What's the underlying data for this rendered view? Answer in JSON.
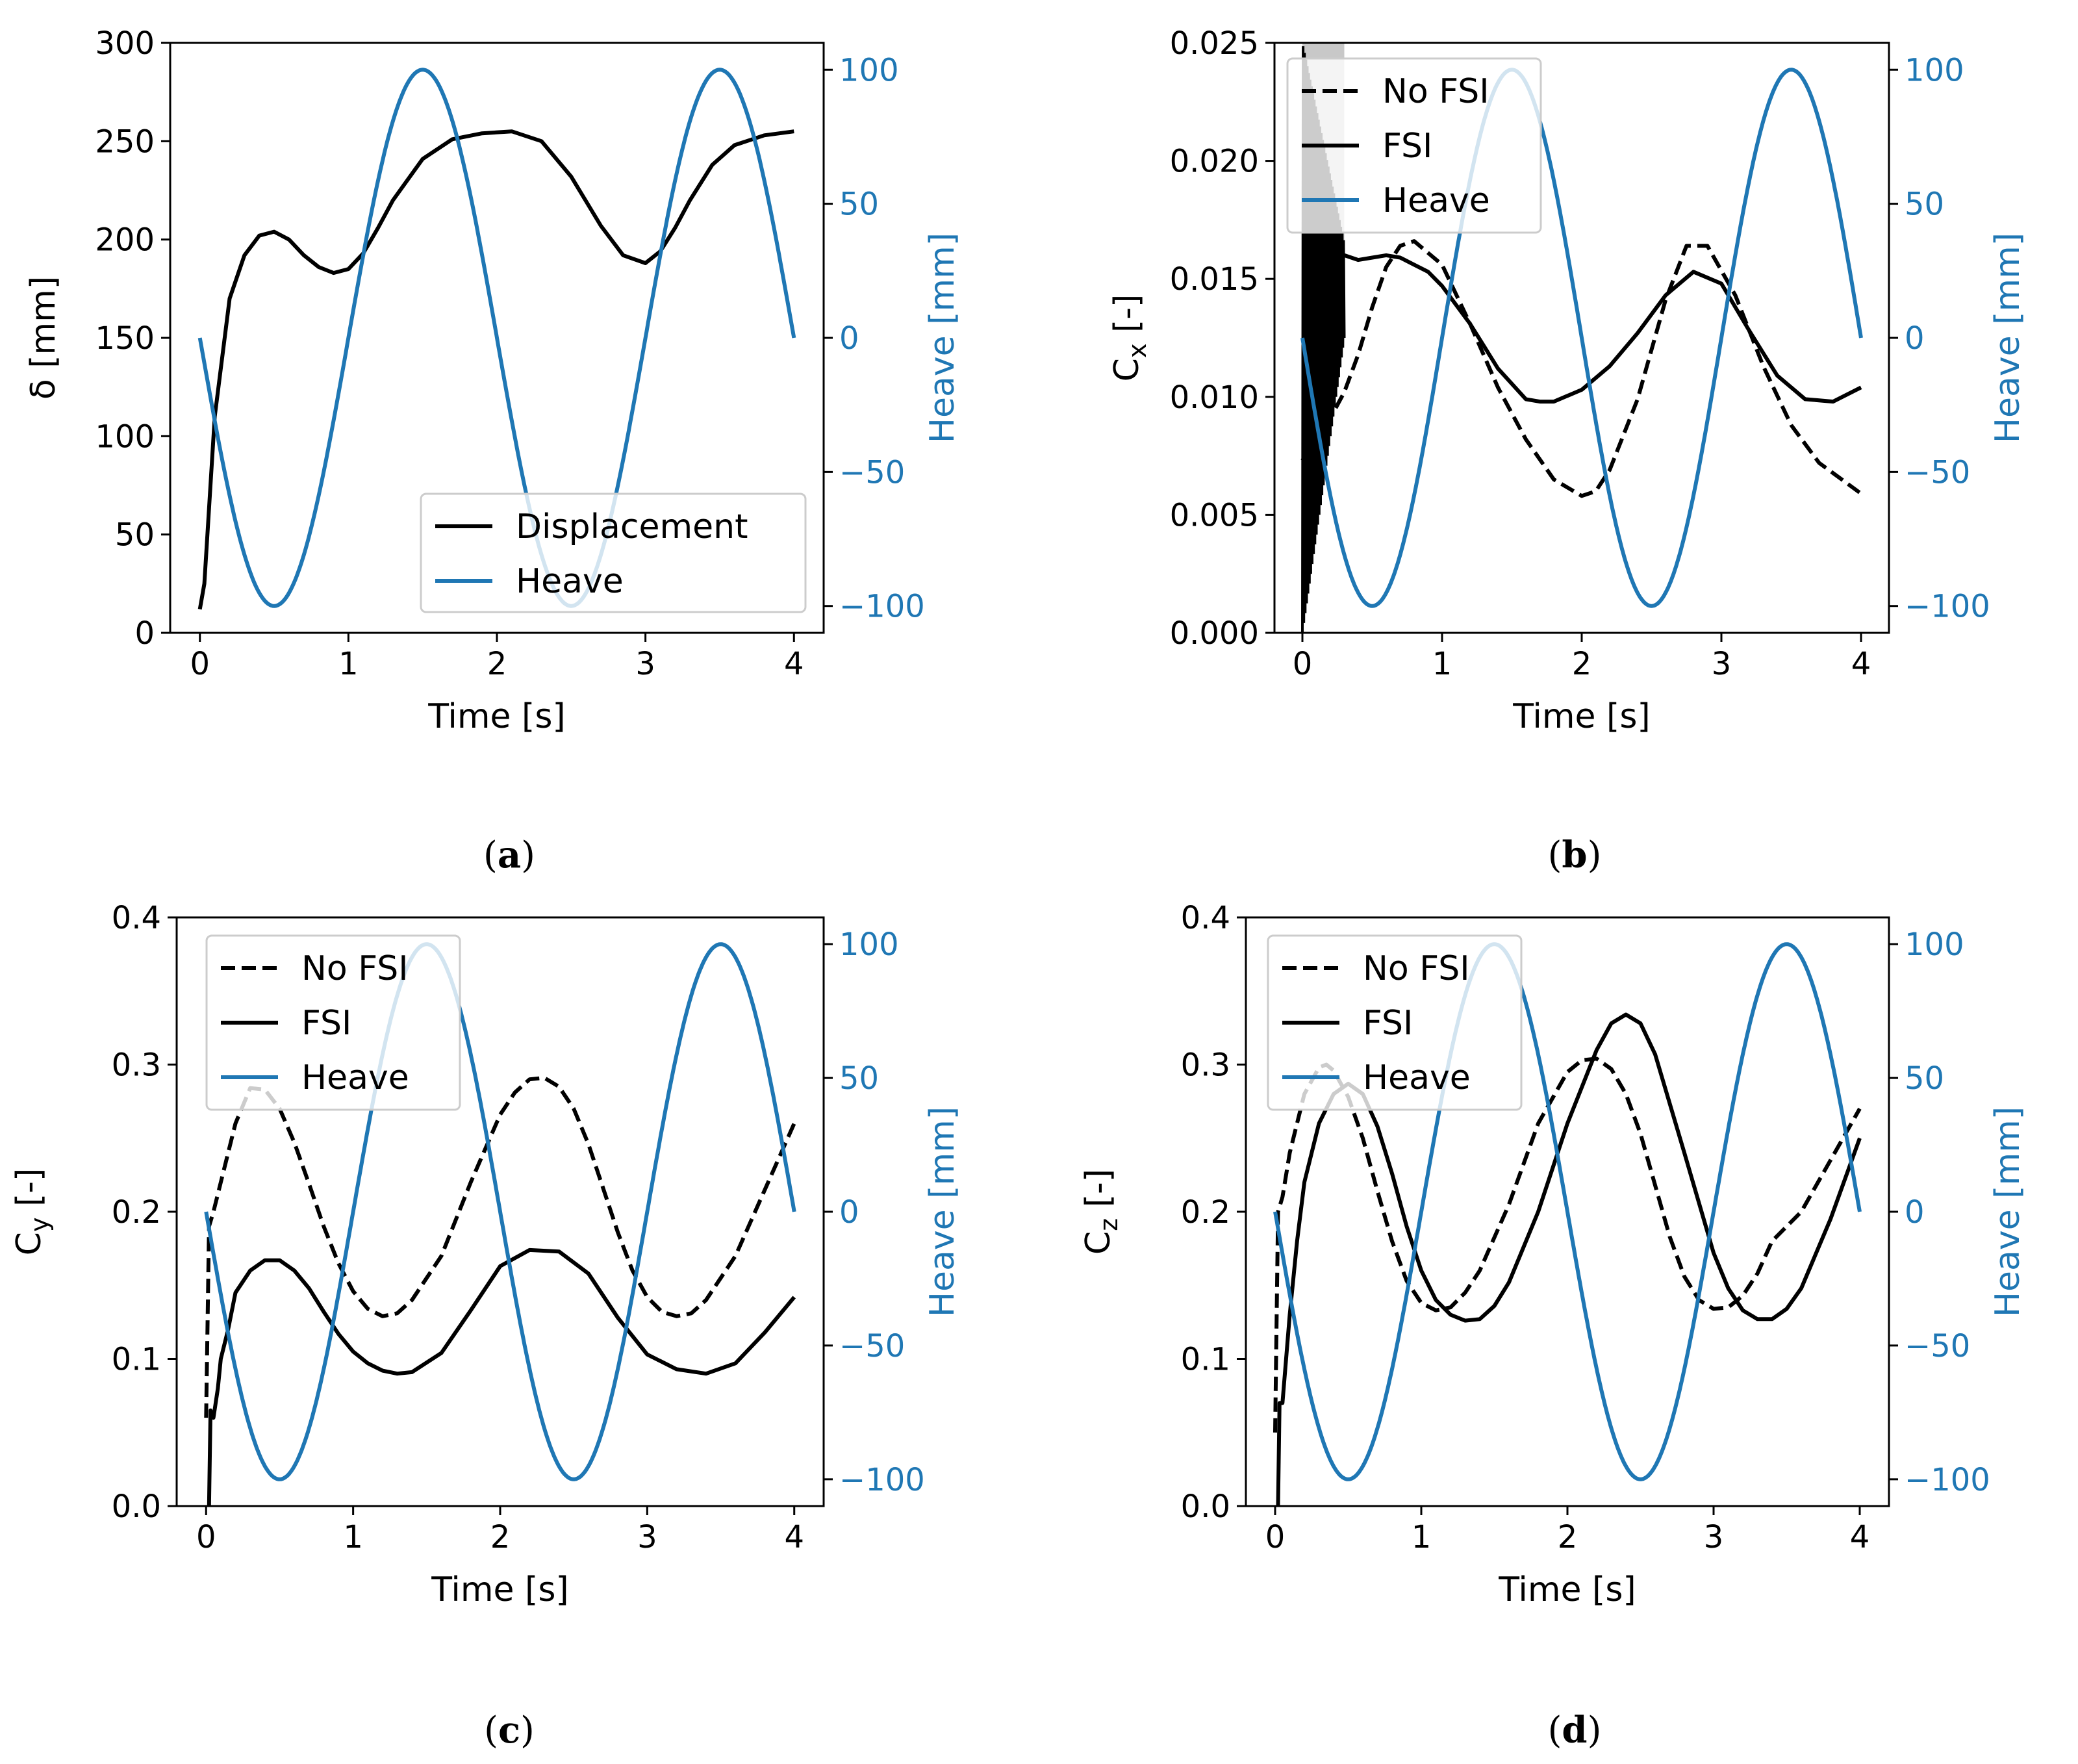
{
  "colors": {
    "heave": "#1f77b4",
    "black": "#000000",
    "fsi_initial_fill": "#c8c8c8"
  },
  "chart_data": [
    {
      "id": "a",
      "caption_open": "(",
      "caption_letter": "a",
      "caption_close": ")",
      "type": "line",
      "xlabel": "Time [s]",
      "ylabel": "δ [mm]",
      "ylabel_right": "Heave [mm]",
      "xlim": [
        -0.2,
        4.2
      ],
      "ylim": [
        0,
        300
      ],
      "ylim_right": [
        -110,
        110
      ],
      "xticks": [
        "0",
        "1",
        "2",
        "3",
        "4"
      ],
      "yticks": [
        "0",
        "50",
        "100",
        "150",
        "200",
        "250",
        "300"
      ],
      "yticks_right": [
        "−100",
        "−50",
        "0",
        "50",
        "100"
      ],
      "legend_position": "lower-right",
      "legend": [
        {
          "label": "Displacement",
          "style": "solid",
          "color": "#000000"
        },
        {
          "label": "Heave",
          "style": "solid",
          "color": "#1f77b4"
        }
      ],
      "series": [
        {
          "name": "Displacement",
          "axis": "left",
          "style": "solid",
          "x": [
            0,
            0.03,
            0.1,
            0.2,
            0.3,
            0.4,
            0.5,
            0.6,
            0.7,
            0.8,
            0.9,
            1.0,
            1.1,
            1.2,
            1.3,
            1.5,
            1.7,
            1.9,
            2.1,
            2.3,
            2.5,
            2.7,
            2.85,
            3.0,
            3.1,
            3.2,
            3.3,
            3.45,
            3.6,
            3.8,
            4.0
          ],
          "y": [
            12,
            25,
            110,
            170,
            192,
            202,
            204,
            200,
            192,
            186,
            183,
            185,
            193,
            206,
            220,
            241,
            251,
            254,
            255,
            250,
            232,
            207,
            192,
            188,
            194,
            206,
            220,
            238,
            248,
            253,
            255
          ]
        },
        {
          "name": "Heave",
          "axis": "right",
          "style": "solid",
          "function": "heave_sin",
          "amplitude": 100,
          "period": 2
        }
      ]
    },
    {
      "id": "b",
      "caption_open": "(",
      "caption_letter": "b",
      "caption_close": ")",
      "type": "line",
      "xlabel": "Time [s]",
      "ylabel": "C",
      "ylabel_sub": "x",
      "ylabel_suffix": " [-]",
      "ylabel_right": "Heave [mm]",
      "xlim": [
        -0.2,
        4.2
      ],
      "ylim": [
        0,
        0.025
      ],
      "ylim_right": [
        -110,
        110
      ],
      "xticks": [
        "0",
        "1",
        "2",
        "3",
        "4"
      ],
      "yticks": [
        "0.000",
        "0.005",
        "0.010",
        "0.015",
        "0.020",
        "0.025"
      ],
      "yticks_right": [
        "−100",
        "−50",
        "0",
        "50",
        "100"
      ],
      "legend_position": "upper-left",
      "legend": [
        {
          "label": "No FSI",
          "style": "dashed",
          "color": "#000000"
        },
        {
          "label": "FSI",
          "style": "solid",
          "color": "#000000"
        },
        {
          "label": "Heave",
          "style": "solid",
          "color": "#1f77b4"
        }
      ],
      "series": [
        {
          "name": "No FSI",
          "axis": "left",
          "style": "dashed",
          "x": [
            0,
            0.1,
            0.2,
            0.3,
            0.4,
            0.5,
            0.6,
            0.7,
            0.8,
            1.0,
            1.2,
            1.4,
            1.6,
            1.8,
            2.0,
            2.1,
            2.2,
            2.4,
            2.6,
            2.75,
            2.9,
            3.1,
            3.3,
            3.5,
            3.7,
            4.0
          ],
          "y": [
            0.0073,
            0.0083,
            0.0091,
            0.0102,
            0.0118,
            0.0138,
            0.0155,
            0.0164,
            0.0166,
            0.0156,
            0.0131,
            0.0104,
            0.0082,
            0.0065,
            0.0058,
            0.006,
            0.0069,
            0.0099,
            0.0141,
            0.0164,
            0.0164,
            0.0143,
            0.0113,
            0.0088,
            0.0072,
            0.0059
          ]
        },
        {
          "name": "FSI",
          "axis": "left",
          "style": "solid",
          "x": [
            0.3,
            0.4,
            0.5,
            0.6,
            0.7,
            0.8,
            0.9,
            1.0,
            1.2,
            1.4,
            1.6,
            1.7,
            1.8,
            2.0,
            2.2,
            2.4,
            2.6,
            2.8,
            3.0,
            3.2,
            3.4,
            3.6,
            3.8,
            4.0
          ],
          "y": [
            0.016,
            0.0158,
            0.0159,
            0.016,
            0.0159,
            0.0156,
            0.0153,
            0.0147,
            0.0131,
            0.0112,
            0.0099,
            0.0098,
            0.0098,
            0.0103,
            0.0113,
            0.0127,
            0.0143,
            0.0153,
            0.0148,
            0.0128,
            0.0109,
            0.0099,
            0.0098,
            0.0104
          ]
        },
        {
          "name": "FSI initial oscillation",
          "axis": "left",
          "style": "oscillation",
          "x_range": [
            0.0,
            0.3
          ],
          "low": [
            0.0,
            0.0125
          ],
          "high": [
            0.025,
            0.0165
          ]
        },
        {
          "name": "Heave",
          "axis": "right",
          "style": "solid",
          "function": "heave_sin",
          "amplitude": 100,
          "period": 2
        }
      ]
    },
    {
      "id": "c",
      "caption_open": "(",
      "caption_letter": "c",
      "caption_close": ")",
      "type": "line",
      "xlabel": "Time [s]",
      "ylabel": "C",
      "ylabel_sub": "y",
      "ylabel_suffix": " [-]",
      "ylabel_right": "Heave [mm]",
      "xlim": [
        -0.2,
        4.2
      ],
      "ylim": [
        0,
        0.4
      ],
      "ylim_right": [
        -110,
        110
      ],
      "xticks": [
        "0",
        "1",
        "2",
        "3",
        "4"
      ],
      "yticks": [
        "0.0",
        "0.1",
        "0.2",
        "0.3",
        "0.4"
      ],
      "yticks_right": [
        "−100",
        "−50",
        "0",
        "50",
        "100"
      ],
      "legend_position": "upper-left",
      "legend": [
        {
          "label": "No FSI",
          "style": "dashed",
          "color": "#000000"
        },
        {
          "label": "FSI",
          "style": "solid",
          "color": "#000000"
        },
        {
          "label": "Heave",
          "style": "solid",
          "color": "#1f77b4"
        }
      ],
      "series": [
        {
          "name": "No FSI",
          "axis": "left",
          "style": "dashed",
          "x": [
            0,
            0.02,
            0.05,
            0.1,
            0.2,
            0.3,
            0.4,
            0.5,
            0.6,
            0.7,
            0.8,
            0.9,
            1.0,
            1.1,
            1.2,
            1.3,
            1.4,
            1.6,
            1.8,
            2.0,
            2.1,
            2.2,
            2.3,
            2.4,
            2.5,
            2.6,
            2.7,
            2.8,
            2.9,
            3.0,
            3.1,
            3.2,
            3.3,
            3.4,
            3.6,
            3.8,
            4.0
          ],
          "y": [
            0.06,
            0.19,
            0.2,
            0.22,
            0.26,
            0.284,
            0.283,
            0.27,
            0.247,
            0.219,
            0.19,
            0.165,
            0.146,
            0.134,
            0.129,
            0.131,
            0.14,
            0.17,
            0.22,
            0.266,
            0.281,
            0.29,
            0.291,
            0.285,
            0.27,
            0.246,
            0.216,
            0.186,
            0.16,
            0.142,
            0.132,
            0.129,
            0.131,
            0.14,
            0.17,
            0.215,
            0.26
          ]
        },
        {
          "name": "FSI",
          "axis": "left",
          "style": "solid",
          "x": [
            0.02,
            0.03,
            0.05,
            0.08,
            0.1,
            0.15,
            0.2,
            0.3,
            0.4,
            0.5,
            0.6,
            0.7,
            0.8,
            0.9,
            1.0,
            1.1,
            1.2,
            1.3,
            1.4,
            1.6,
            1.8,
            2.0,
            2.2,
            2.4,
            2.6,
            2.8,
            3.0,
            3.2,
            3.4,
            3.6,
            3.8,
            4.0
          ],
          "y": [
            0.0,
            0.065,
            0.06,
            0.08,
            0.1,
            0.12,
            0.145,
            0.16,
            0.167,
            0.167,
            0.16,
            0.148,
            0.132,
            0.117,
            0.105,
            0.097,
            0.092,
            0.09,
            0.091,
            0.104,
            0.133,
            0.163,
            0.174,
            0.173,
            0.158,
            0.128,
            0.103,
            0.093,
            0.09,
            0.097,
            0.118,
            0.142
          ]
        },
        {
          "name": "Heave",
          "axis": "right",
          "style": "solid",
          "function": "heave_sin",
          "amplitude": 100,
          "period": 2
        }
      ]
    },
    {
      "id": "d",
      "caption_open": "(",
      "caption_letter": "d",
      "caption_close": ")",
      "type": "line",
      "xlabel": "Time [s]",
      "ylabel": "C",
      "ylabel_sub": "z",
      "ylabel_suffix": " [-]",
      "ylabel_right": "Heave [mm]",
      "xlim": [
        -0.2,
        4.2
      ],
      "ylim": [
        0,
        0.4
      ],
      "ylim_right": [
        -110,
        110
      ],
      "xticks": [
        "0",
        "1",
        "2",
        "3",
        "4"
      ],
      "yticks": [
        "0.0",
        "0.1",
        "0.2",
        "0.3",
        "0.4"
      ],
      "yticks_right": [
        "−100",
        "−50",
        "0",
        "50",
        "100"
      ],
      "legend_position": "upper-left",
      "legend": [
        {
          "label": "No FSI",
          "style": "dashed",
          "color": "#000000"
        },
        {
          "label": "FSI",
          "style": "solid",
          "color": "#000000"
        },
        {
          "label": "Heave",
          "style": "solid",
          "color": "#1f77b4"
        }
      ],
      "series": [
        {
          "name": "No FSI",
          "axis": "left",
          "style": "dashed",
          "x": [
            0,
            0.02,
            0.05,
            0.1,
            0.2,
            0.3,
            0.35,
            0.4,
            0.5,
            0.6,
            0.7,
            0.8,
            0.9,
            1.0,
            1.1,
            1.2,
            1.3,
            1.4,
            1.6,
            1.8,
            2.0,
            2.1,
            2.2,
            2.3,
            2.4,
            2.5,
            2.6,
            2.7,
            2.8,
            2.9,
            3.0,
            3.1,
            3.2,
            3.3,
            3.4,
            3.6,
            3.8,
            4.0
          ],
          "y": [
            0.05,
            0.2,
            0.21,
            0.24,
            0.28,
            0.298,
            0.3,
            0.296,
            0.278,
            0.25,
            0.214,
            0.18,
            0.153,
            0.138,
            0.133,
            0.135,
            0.145,
            0.16,
            0.205,
            0.26,
            0.295,
            0.303,
            0.304,
            0.297,
            0.28,
            0.253,
            0.218,
            0.183,
            0.156,
            0.14,
            0.134,
            0.135,
            0.143,
            0.158,
            0.18,
            0.2,
            0.235,
            0.27
          ]
        },
        {
          "name": "FSI",
          "axis": "left",
          "style": "solid",
          "x": [
            0.02,
            0.03,
            0.05,
            0.1,
            0.15,
            0.2,
            0.3,
            0.4,
            0.5,
            0.6,
            0.7,
            0.8,
            0.9,
            1.0,
            1.1,
            1.2,
            1.3,
            1.4,
            1.5,
            1.6,
            1.8,
            2.0,
            2.2,
            2.3,
            2.4,
            2.5,
            2.6,
            2.8,
            3.0,
            3.1,
            3.2,
            3.3,
            3.4,
            3.5,
            3.6,
            3.8,
            4.0
          ],
          "y": [
            0.0,
            0.07,
            0.07,
            0.13,
            0.18,
            0.22,
            0.26,
            0.28,
            0.287,
            0.28,
            0.258,
            0.226,
            0.19,
            0.16,
            0.14,
            0.13,
            0.126,
            0.127,
            0.136,
            0.152,
            0.2,
            0.26,
            0.31,
            0.328,
            0.334,
            0.328,
            0.307,
            0.24,
            0.172,
            0.148,
            0.133,
            0.127,
            0.127,
            0.134,
            0.148,
            0.195,
            0.25
          ]
        },
        {
          "name": "Heave",
          "axis": "right",
          "style": "solid",
          "function": "heave_sin",
          "amplitude": 100,
          "period": 2
        }
      ]
    }
  ]
}
